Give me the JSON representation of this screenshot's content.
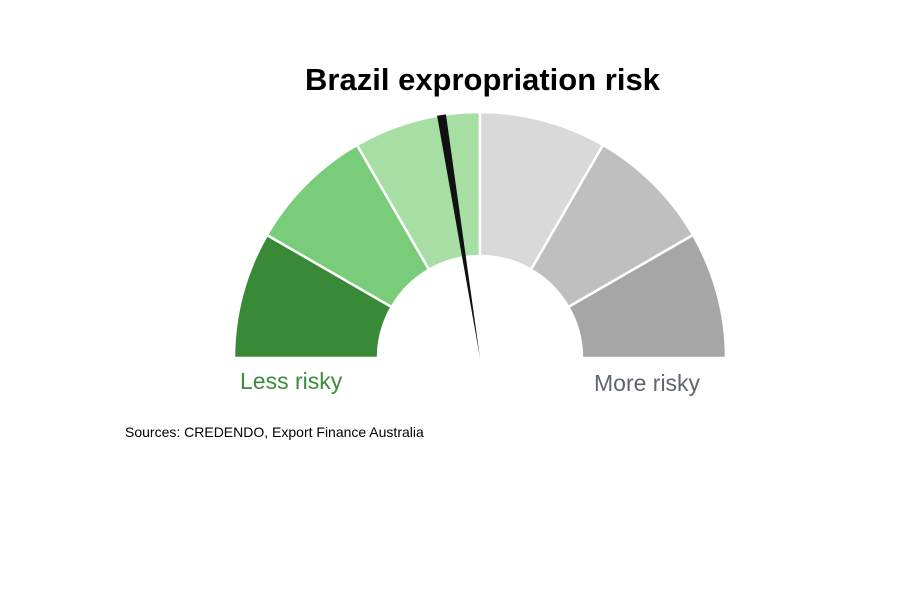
{
  "chart_data": {
    "type": "gauge",
    "title": "Brazil expropriation risk",
    "segments": [
      {
        "color": "#388a37"
      },
      {
        "color": "#79cc79"
      },
      {
        "color": "#a7dea3"
      },
      {
        "color": "#d9d9d9"
      },
      {
        "color": "#bfbfbf"
      },
      {
        "color": "#a6a6a6"
      }
    ],
    "needle_fraction": 0.45,
    "needle_color": "#111111",
    "scale_labels": {
      "low": "Less risky",
      "high": "More risky"
    }
  },
  "source": "Sources: CREDENDO, Export Finance Australia"
}
